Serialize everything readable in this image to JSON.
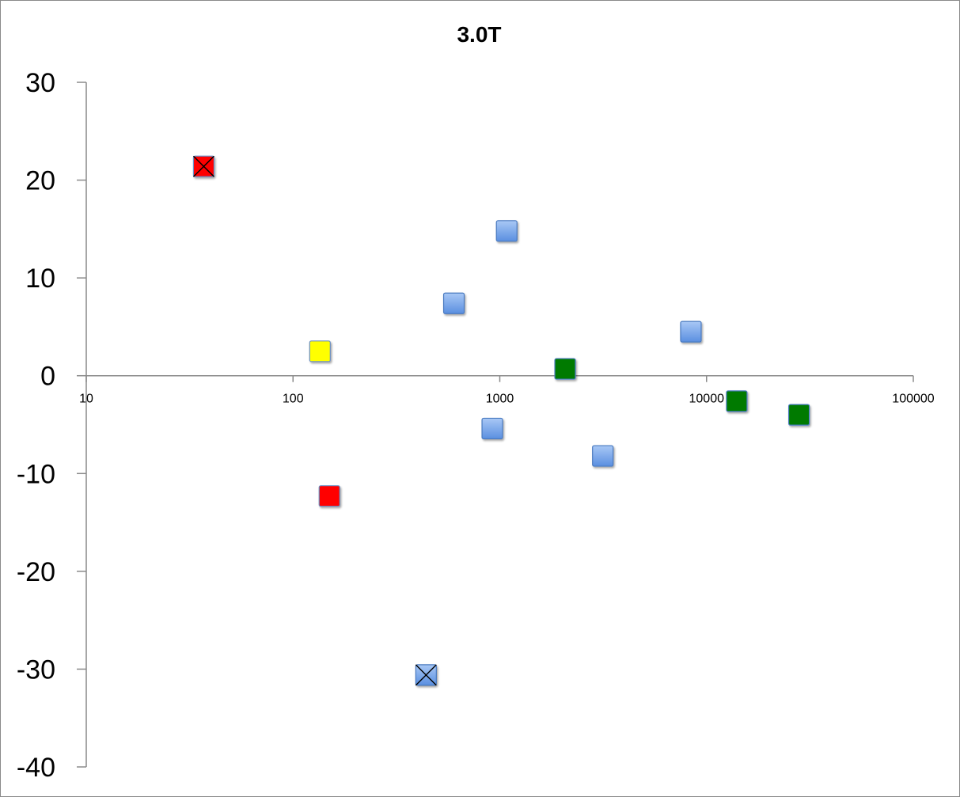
{
  "chart_data": {
    "type": "scatter",
    "title": "3.0T",
    "xlabel": "",
    "ylabel": "",
    "x_scale": "log",
    "xlim": [
      10,
      100000
    ],
    "ylim": [
      -40,
      30
    ],
    "x_ticks": [
      "10",
      "100",
      "1000",
      "10000",
      "100000"
    ],
    "y_ticks": [
      "30",
      "20",
      "10",
      "0",
      "-10",
      "-20",
      "-30",
      "-40"
    ],
    "y_tick_values": [
      30,
      20,
      10,
      0,
      -10,
      -20,
      -30,
      -40
    ],
    "x_tick_values": [
      10,
      100,
      1000,
      10000,
      100000
    ],
    "grid": false,
    "legend": "none",
    "marker": "square",
    "colors": {
      "red": "#ff0000",
      "yellow": "#ffff00",
      "blue": "#6b9ee8",
      "green": "#007a00",
      "axis": "#8a8a8a"
    },
    "points": [
      {
        "x": 37,
        "y": 21.4,
        "color": "red",
        "cross": true
      },
      {
        "x": 150,
        "y": -12.3,
        "color": "red",
        "cross": false
      },
      {
        "x": 135,
        "y": 2.5,
        "color": "yellow",
        "cross": false
      },
      {
        "x": 440,
        "y": -30.6,
        "color": "blue",
        "cross": true
      },
      {
        "x": 600,
        "y": 7.4,
        "color": "blue",
        "cross": false
      },
      {
        "x": 920,
        "y": -5.4,
        "color": "blue",
        "cross": false
      },
      {
        "x": 1080,
        "y": 14.8,
        "color": "blue",
        "cross": false
      },
      {
        "x": 3150,
        "y": -8.2,
        "color": "blue",
        "cross": false
      },
      {
        "x": 8400,
        "y": 4.5,
        "color": "blue",
        "cross": false
      },
      {
        "x": 2070,
        "y": 0.7,
        "color": "green",
        "cross": false
      },
      {
        "x": 14000,
        "y": -2.6,
        "color": "green",
        "cross": false
      },
      {
        "x": 28000,
        "y": -4.0,
        "color": "green",
        "cross": false
      }
    ]
  }
}
